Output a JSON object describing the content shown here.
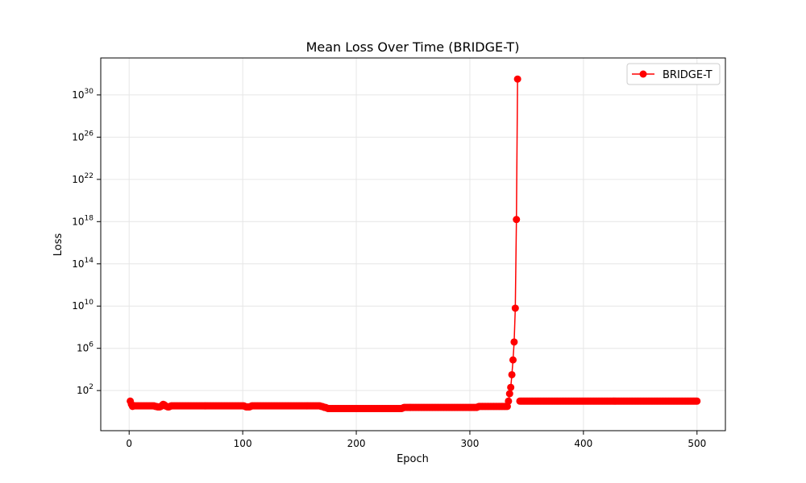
{
  "chart_data": {
    "type": "line",
    "title": "Mean Loss Over Time (BRIDGE-T)",
    "xlabel": "Epoch",
    "ylabel": "Loss",
    "xlim": [
      -25,
      525
    ],
    "ylim_log10": [
      -1.8,
      33.5
    ],
    "yscale": "log",
    "x_ticks": [
      0,
      100,
      200,
      300,
      400,
      500
    ],
    "x_tick_labels": [
      "0",
      "100",
      "200",
      "300",
      "400",
      "500"
    ],
    "y_tick_exponents": [
      2,
      6,
      10,
      14,
      18,
      22,
      26,
      30
    ],
    "y_tick_labels": [
      [
        "10",
        "2"
      ],
      [
        "10",
        "6"
      ],
      [
        "10",
        "10"
      ],
      [
        "10",
        "14"
      ],
      [
        "10",
        "18"
      ],
      [
        "10",
        "22"
      ],
      [
        "10",
        "26"
      ],
      [
        "10",
        "30"
      ]
    ],
    "grid": true,
    "legend_position": "top-right",
    "marker": "circle",
    "series": [
      {
        "name": "BRIDGE-T",
        "color": "#ff0000",
        "segments": [
          {
            "x_start": 1,
            "x_end": 333,
            "log10_values": [
              1.0,
              0.7,
              0.5,
              0.55,
              0.55,
              0.55,
              0.55,
              0.55,
              0.55,
              0.55,
              0.55,
              0.55,
              0.55,
              0.55,
              0.55,
              0.55,
              0.55,
              0.55,
              0.55,
              0.55,
              0.55,
              0.55,
              0.5,
              0.5,
              0.45,
              0.45,
              0.45,
              0.5,
              0.6,
              0.7,
              0.65,
              0.55,
              0.5,
              0.45,
              0.45,
              0.5,
              0.55,
              0.55,
              0.55,
              0.55,
              0.55,
              0.55,
              0.55,
              0.55,
              0.55,
              0.55,
              0.55,
              0.55,
              0.55,
              0.55,
              0.55,
              0.55,
              0.55,
              0.55,
              0.55,
              0.55,
              0.55,
              0.55,
              0.55,
              0.55,
              0.55,
              0.55,
              0.55,
              0.55,
              0.55,
              0.55,
              0.55,
              0.55,
              0.55,
              0.55,
              0.55,
              0.55,
              0.55,
              0.55,
              0.55,
              0.55,
              0.55,
              0.55,
              0.55,
              0.55,
              0.55,
              0.55,
              0.55,
              0.55,
              0.55,
              0.55,
              0.55,
              0.55,
              0.55,
              0.55,
              0.55,
              0.55,
              0.55,
              0.55,
              0.55,
              0.55,
              0.55,
              0.55,
              0.55,
              0.55,
              0.55,
              0.5,
              0.45,
              0.45,
              0.45,
              0.45,
              0.5,
              0.55,
              0.55,
              0.55,
              0.55,
              0.55,
              0.55,
              0.55,
              0.55,
              0.55,
              0.55,
              0.55,
              0.55,
              0.55,
              0.55,
              0.55,
              0.55,
              0.55,
              0.55,
              0.55,
              0.55,
              0.55,
              0.55,
              0.55,
              0.55,
              0.55,
              0.55,
              0.55,
              0.55,
              0.55,
              0.55,
              0.55,
              0.55,
              0.55,
              0.55,
              0.55,
              0.55,
              0.55,
              0.55,
              0.55,
              0.55,
              0.55,
              0.55,
              0.55,
              0.55,
              0.55,
              0.55,
              0.55,
              0.55,
              0.55,
              0.55,
              0.55,
              0.55,
              0.55,
              0.55,
              0.55,
              0.55,
              0.55,
              0.55,
              0.55,
              0.55,
              0.55,
              0.5,
              0.5,
              0.45,
              0.4,
              0.4,
              0.35,
              0.3,
              0.3,
              0.3,
              0.3,
              0.3,
              0.3,
              0.3,
              0.3,
              0.3,
              0.3,
              0.3,
              0.3,
              0.3,
              0.3,
              0.3,
              0.3,
              0.3,
              0.3,
              0.3,
              0.3,
              0.3,
              0.3,
              0.3,
              0.3,
              0.3,
              0.3,
              0.3,
              0.3,
              0.3,
              0.3,
              0.3,
              0.3,
              0.3,
              0.3,
              0.3,
              0.3,
              0.3,
              0.3,
              0.3,
              0.3,
              0.3,
              0.3,
              0.3,
              0.3,
              0.3,
              0.3,
              0.3,
              0.3,
              0.3,
              0.3,
              0.3,
              0.3,
              0.3,
              0.3,
              0.3,
              0.3,
              0.3,
              0.3,
              0.3,
              0.3,
              0.3,
              0.3,
              0.3,
              0.3,
              0.3,
              0.3,
              0.35,
              0.4,
              0.4,
              0.4,
              0.4,
              0.4,
              0.4,
              0.4,
              0.4,
              0.4,
              0.4,
              0.4,
              0.4,
              0.4,
              0.4,
              0.4,
              0.4,
              0.4,
              0.4,
              0.4,
              0.4,
              0.4,
              0.4,
              0.4,
              0.4,
              0.4,
              0.4,
              0.4,
              0.4,
              0.4,
              0.4,
              0.4,
              0.4,
              0.4,
              0.4,
              0.4,
              0.4,
              0.4,
              0.4,
              0.4,
              0.4,
              0.4,
              0.4,
              0.4,
              0.4,
              0.4,
              0.4,
              0.4,
              0.4,
              0.4,
              0.4,
              0.4,
              0.4,
              0.4,
              0.4,
              0.4,
              0.4,
              0.4,
              0.4,
              0.4,
              0.4,
              0.4,
              0.4,
              0.4,
              0.4,
              0.4,
              0.45,
              0.5,
              0.5,
              0.5,
              0.5,
              0.5,
              0.5,
              0.5,
              0.5,
              0.5,
              0.5,
              0.5,
              0.5,
              0.5,
              0.5,
              0.5,
              0.5,
              0.5,
              0.5,
              0.5,
              0.5,
              0.5,
              0.5,
              0.5,
              0.5,
              0.5,
              0.5
            ]
          },
          {
            "x": [
              334,
              335,
              336,
              337,
              338,
              339,
              340,
              341,
              342
            ],
            "log10_values": [
              1.0,
              1.7,
              2.3,
              3.5,
              4.9,
              6.6,
              9.8,
              18.2,
              31.5
            ]
          }
        ]
      },
      {
        "name": "",
        "color": "#ff0000",
        "segments": [
          {
            "x_start": 344,
            "x_end": 500,
            "constant_log10": 1.0
          }
        ]
      }
    ]
  }
}
